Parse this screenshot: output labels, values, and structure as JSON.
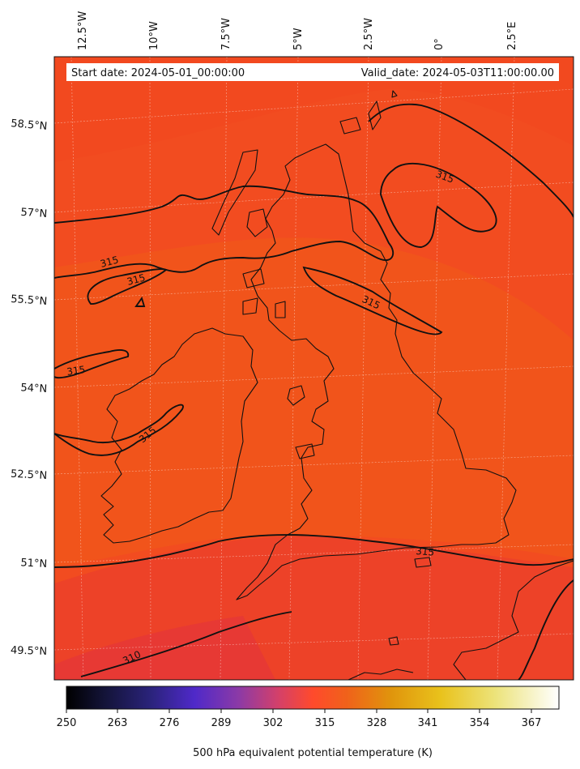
{
  "map": {
    "start_date": "Start date: 2024-05-01_00:00:00",
    "valid_date": "Valid_date: 2024-05-03T11:00:00.00",
    "lon_labels": [
      "12.5°W",
      "10°W",
      "7.5°W",
      "5°W",
      "2.5°W",
      "0°",
      "2.5°E"
    ],
    "lat_labels": [
      "58.5°N",
      "57°N",
      "55.5°N",
      "54°N",
      "52.5°N",
      "51°N",
      "49.5°N"
    ],
    "contour_labels": [
      "315",
      "315",
      "315",
      "315",
      "315",
      "315",
      "315",
      "310"
    ],
    "field_colors": {
      "main": "#f4501f",
      "cool": "#ea3f2f",
      "warm": "#f25618"
    }
  },
  "colorbar": {
    "label": "500 hPa equivalent potential temperature (K)",
    "ticks": [
      "250",
      "263",
      "276",
      "289",
      "302",
      "315",
      "328",
      "341",
      "354",
      "367"
    ],
    "colormap": "CMRmap"
  }
}
